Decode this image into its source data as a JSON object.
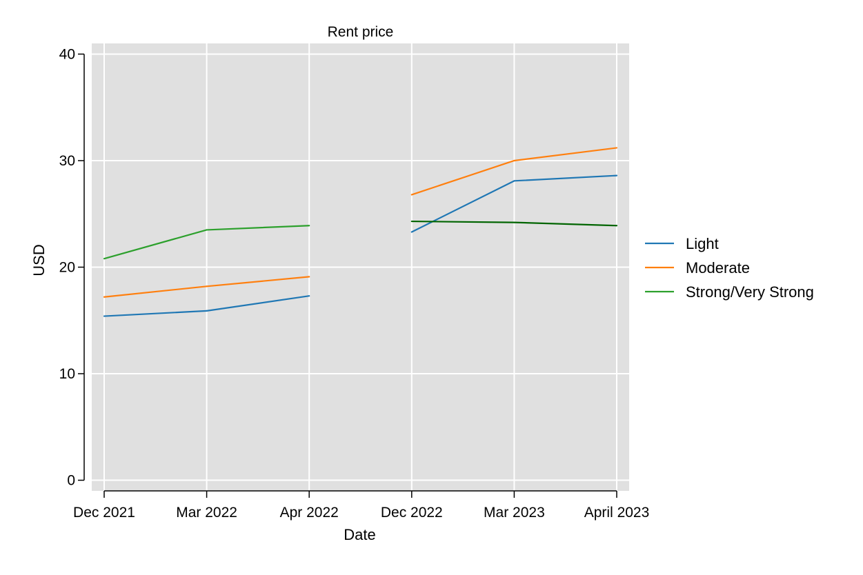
{
  "chart_data": {
    "type": "line",
    "title": "Rent price",
    "xlabel": "Date",
    "ylabel": "USD",
    "categories": [
      "Dec 2021",
      "Mar 2022",
      "Apr 2022",
      "Dec 2022",
      "Mar 2023",
      "April 2023"
    ],
    "ylim": [
      -1,
      41
    ],
    "yticks": [
      0,
      10,
      20,
      30,
      40
    ],
    "grid": true,
    "legend_position": "right",
    "background": "#e0e0e0",
    "series": [
      {
        "name": "Light",
        "color": "#1f77b4",
        "values": [
          15.4,
          15.9,
          17.3,
          23.3,
          28.1,
          28.6
        ]
      },
      {
        "name": "Moderate",
        "color": "#ff7f0e",
        "values": [
          17.2,
          18.2,
          19.1,
          26.8,
          30.0,
          31.2
        ]
      },
      {
        "name": "Strong/Very Strong",
        "color": "#2ca02c",
        "segment_colors": [
          "#2ca02c",
          "#2ca02c",
          null,
          "#006400",
          "#006400"
        ],
        "values": [
          20.8,
          23.5,
          23.9,
          24.3,
          24.2,
          23.9
        ]
      }
    ],
    "segment_break_after": "Apr 2022"
  }
}
